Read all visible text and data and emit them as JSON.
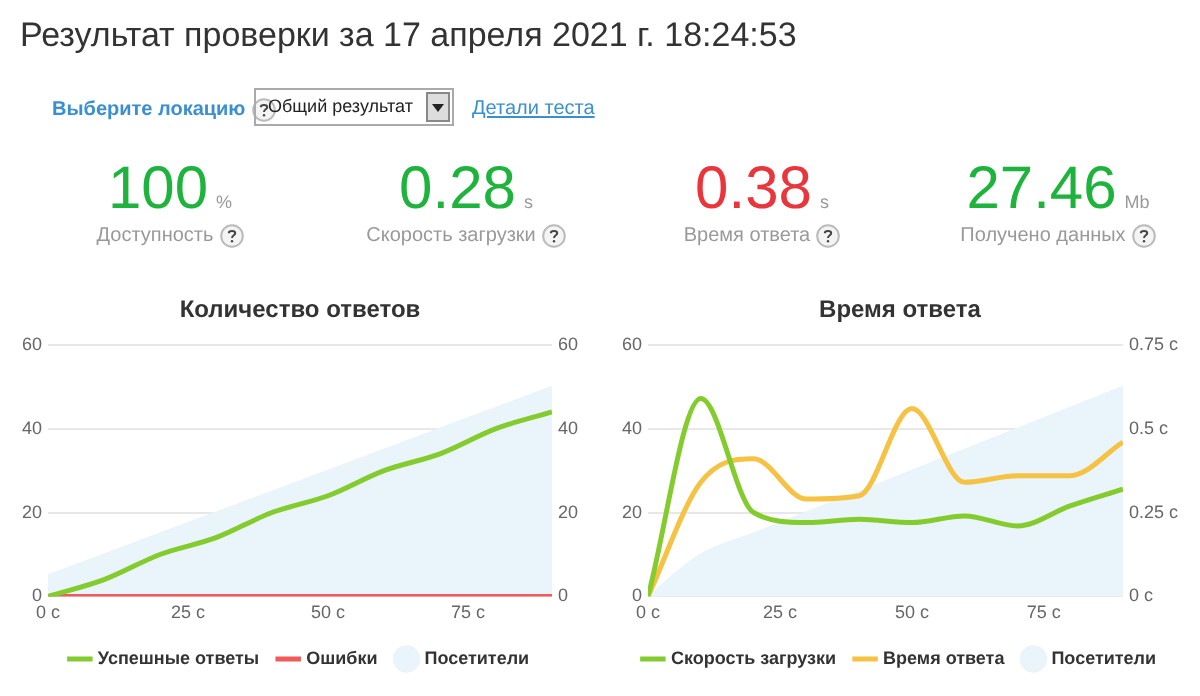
{
  "chart_data": [
    {
      "type": "other",
      "title": "Результат проверки за 17 апреля 2021 г. 18:24:53",
      "categories": [
        "Доступность",
        "Скорость загрузки",
        "Время ответа",
        "Получено данных"
      ],
      "value_labels": [
        "100",
        "0.28",
        "0.38",
        "27.46"
      ],
      "colors": [
        "#1db33c",
        "#1db33c",
        "#e8363c",
        "#1db33c"
      ],
      "annotations": [
        "Выберите локацию",
        "Общий результат",
        "Детали теста",
        "%",
        "s",
        "s",
        "Mb"
      ]
    },
    {
      "type": "line",
      "title": "Количество ответов",
      "x": [
        0,
        10,
        20,
        30,
        40,
        50,
        60,
        70,
        80,
        90
      ],
      "xlim": [
        0,
        90
      ],
      "xticks": [
        {
          "value": 0,
          "label": "0 с"
        },
        {
          "value": 25,
          "label": "25 с"
        },
        {
          "value": 50,
          "label": "50 с"
        },
        {
          "value": 75,
          "label": "75 с"
        }
      ],
      "ylim": [
        0,
        60
      ],
      "yticks": [
        0,
        20,
        40,
        60
      ],
      "y2lim": [
        0,
        60
      ],
      "y2ticks": [
        0,
        20,
        40,
        60
      ],
      "grid": "y",
      "legend": "bottom",
      "marker": "none",
      "line_style": "solid",
      "series": [
        {
          "type": "area",
          "name": "Посетители",
          "color": "#eaf4fb",
          "values": [
            5,
            10,
            15,
            20,
            25,
            30,
            35,
            40,
            45,
            50
          ]
        },
        {
          "name": "Успешные ответы",
          "color": "#84cc2e",
          "values": [
            0,
            4,
            10,
            14,
            20,
            24,
            30,
            34,
            40,
            44
          ]
        },
        {
          "name": "Ошибки",
          "color": "#f05a5a",
          "values": [
            0,
            0,
            0,
            0,
            0,
            0,
            0,
            0,
            0,
            0
          ]
        }
      ]
    },
    {
      "type": "line",
      "title": "Время ответа",
      "x": [
        0,
        10,
        20,
        30,
        40,
        50,
        60,
        70,
        80,
        90
      ],
      "xlim": [
        0,
        90
      ],
      "xticks": [
        {
          "value": 0,
          "label": "0 с"
        },
        {
          "value": 25,
          "label": "25 с"
        },
        {
          "value": 50,
          "label": "50 с"
        },
        {
          "value": 75,
          "label": "75 с"
        }
      ],
      "ylim": [
        0,
        60
      ],
      "yticks": [
        0,
        20,
        40,
        60
      ],
      "y2lim": [
        0,
        0.75
      ],
      "y2ticks": [
        {
          "value": 0,
          "label": "0 с"
        },
        {
          "value": 0.25,
          "label": "0.25 с"
        },
        {
          "value": 0.5,
          "label": "0.5 с"
        },
        {
          "value": 0.75,
          "label": "0.75 с"
        }
      ],
      "grid": "y",
      "legend": "bottom",
      "marker": "none",
      "line_style": "solid",
      "series": [
        {
          "type": "area",
          "name": "Посетители",
          "color": "#eaf4fb",
          "values": [
            0,
            10,
            15,
            20,
            25,
            30,
            35,
            40,
            45,
            50
          ]
        },
        {
          "name": "Скорость загрузки",
          "color": "#84cc2e",
          "axis": "y2",
          "values": [
            0,
            0.59,
            0.25,
            0.22,
            0.23,
            0.22,
            0.24,
            0.21,
            0.27,
            0.32
          ]
        },
        {
          "name": "Время ответа",
          "color": "#f6c243",
          "axis": "y2",
          "values": [
            0,
            0.34,
            0.41,
            0.29,
            0.3,
            0.56,
            0.34,
            0.36,
            0.36,
            0.46
          ]
        }
      ]
    }
  ]
}
